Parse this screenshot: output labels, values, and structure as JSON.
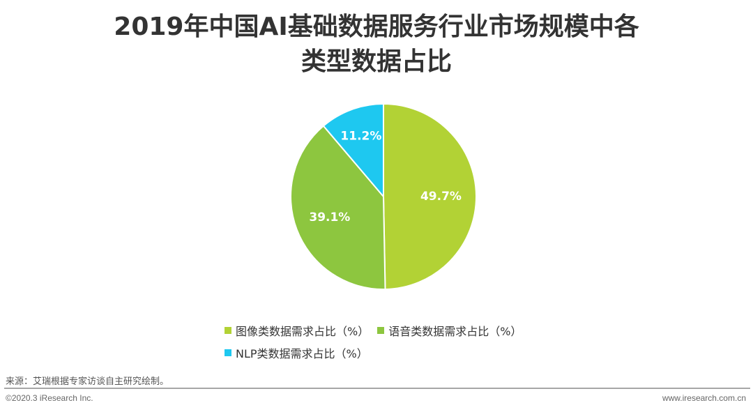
{
  "title_lines": [
    "2019年中国AI基础数据服务行业市场规模中各",
    "类型数据占比"
  ],
  "chart_data": {
    "type": "pie",
    "title": "2019年中国AI基础数据服务行业市场规模中各类型数据占比",
    "slices": [
      {
        "name": "图像类数据需求占比（%）",
        "value": 49.7,
        "label": "49.7%",
        "color": "#b2d235"
      },
      {
        "name": "语音类数据需求占比（%）",
        "value": 39.1,
        "label": "39.1%",
        "color": "#8dc63f"
      },
      {
        "name": "NLP类数据需求占比（%）",
        "value": 11.2,
        "label": "11.2%",
        "color": "#1ec8f0"
      }
    ],
    "legend_position": "bottom"
  },
  "source": "来源：艾瑞根据专家访谈自主研究绘制。",
  "footer": {
    "copyright": "©2020.3 iResearch Inc.",
    "website": "www.iresearch.com.cn"
  }
}
